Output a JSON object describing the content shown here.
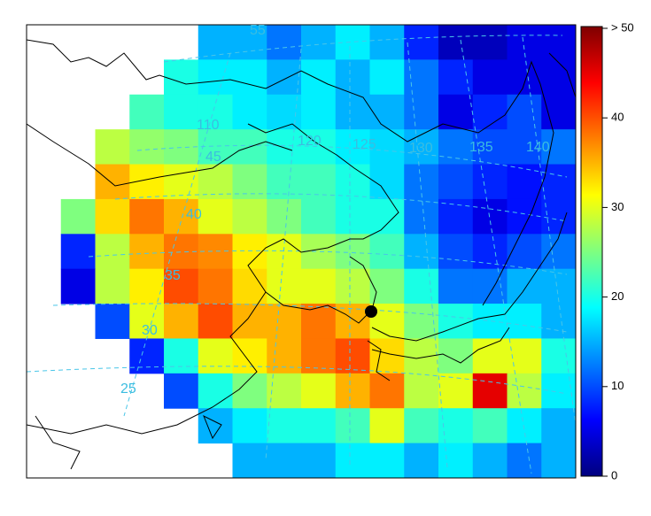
{
  "map": {
    "zlim": [
      0,
      50
    ],
    "colors": [
      "#00007f",
      "#0000ff",
      "#007fff",
      "#00ffff",
      "#7fff7f",
      "#ffff00",
      "#ff7f00",
      "#ff0000",
      "#7f0000"
    ],
    "colorbar_ticks": [
      {
        "value": 50,
        "label": "> 50"
      },
      40,
      30,
      20,
      10,
      0
    ],
    "graticule_labels": [
      "55",
      "45",
      "40",
      "35",
      "30",
      "25",
      "110",
      "120",
      "125",
      "130",
      "135",
      "140"
    ],
    "values": [
      [
        null,
        null,
        null,
        null,
        null,
        15,
        15,
        12,
        15,
        18,
        15,
        8,
        3,
        3,
        5,
        5
      ],
      [
        null,
        null,
        null,
        null,
        20,
        18,
        18,
        15,
        18,
        15,
        18,
        12,
        8,
        5,
        5,
        5
      ],
      [
        null,
        null,
        null,
        22,
        20,
        20,
        18,
        17,
        18,
        15,
        15,
        12,
        5,
        8,
        10,
        5
      ],
      [
        null,
        null,
        28,
        26,
        25,
        22,
        22,
        20,
        20,
        18,
        17,
        15,
        12,
        10,
        10,
        12
      ],
      [
        null,
        null,
        35,
        32,
        30,
        28,
        25,
        22,
        22,
        20,
        17,
        12,
        10,
        8,
        7,
        8
      ],
      [
        null,
        25,
        33,
        38,
        35,
        30,
        28,
        25,
        22,
        20,
        20,
        12,
        8,
        5,
        7,
        8
      ],
      [
        null,
        8,
        28,
        35,
        38,
        37,
        32,
        30,
        27,
        25,
        22,
        15,
        10,
        8,
        10,
        12
      ],
      [
        null,
        5,
        28,
        32,
        40,
        38,
        33,
        30,
        30,
        28,
        25,
        20,
        12,
        12,
        15,
        15
      ],
      [
        null,
        null,
        10,
        30,
        35,
        40,
        35,
        35,
        38,
        35,
        30,
        25,
        20,
        18,
        18,
        15
      ],
      [
        null,
        null,
        null,
        8,
        20,
        30,
        32,
        35,
        38,
        40,
        33,
        28,
        25,
        30,
        30,
        20
      ],
      [
        null,
        null,
        null,
        null,
        10,
        20,
        25,
        28,
        30,
        35,
        38,
        28,
        30,
        45,
        28,
        18
      ],
      [
        null,
        null,
        null,
        null,
        null,
        15,
        18,
        20,
        20,
        22,
        30,
        22,
        20,
        22,
        18,
        15
      ],
      [
        null,
        null,
        null,
        null,
        null,
        null,
        15,
        15,
        15,
        18,
        18,
        15,
        18,
        15,
        12,
        15
      ]
    ]
  }
}
